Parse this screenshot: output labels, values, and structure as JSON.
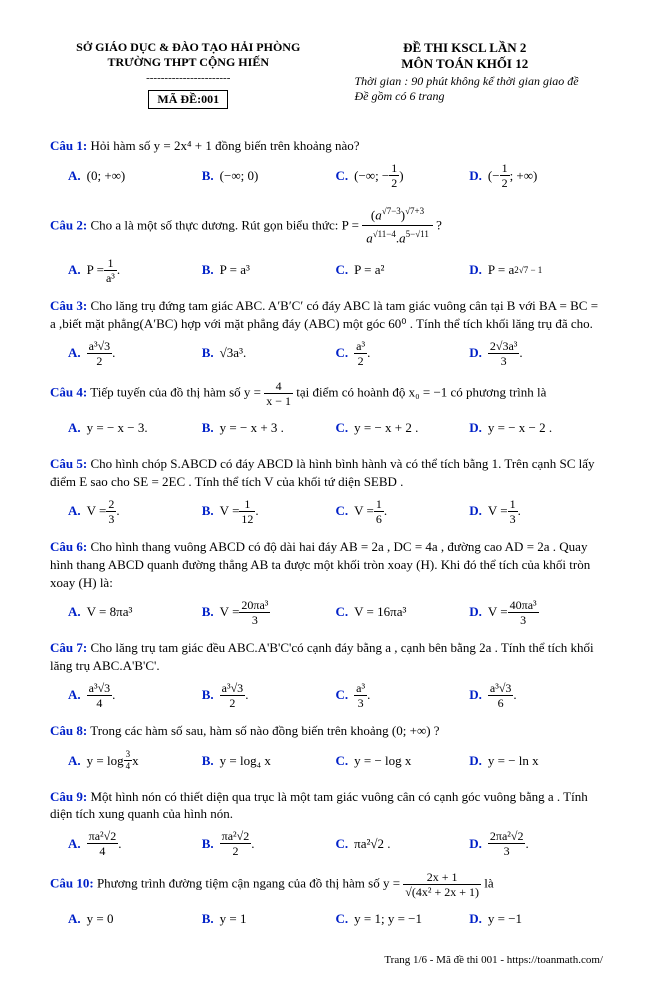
{
  "header": {
    "dept": "SỞ GIÁO DỤC & ĐÀO TẠO HẢI PHÒNG",
    "school": "TRƯỜNG THPT CỘNG HIẾN",
    "code_label": "MÃ ĐỀ:001",
    "title": "ĐỀ THI KSCL LẦN 2",
    "subject": "MÔN TOÁN KHỐI 12",
    "time": "Thời gian : 90 phút không kể thời gian giao đề",
    "pages": "Đề gồm có 6 trang"
  },
  "q1": {
    "label": "Câu 1:",
    "text": "Hỏi hàm số  y = 2x⁴ + 1 đồng biến trên khoảng nào?",
    "a": "(0; +∞)",
    "b": "(−∞; 0)",
    "c_pre": "(−∞; −",
    "c_num": "1",
    "c_den": "2",
    "c_post": ")",
    "d_pre": "(−",
    "d_num": "1",
    "d_den": "2",
    "d_post": "; +∞)"
  },
  "q2": {
    "label": "Câu 2:",
    "text_pre": "Cho  a là một số thực dương. Rút gọn biểu thức:  P = ",
    "top_base_exp": "√7−3",
    "top_outer_exp": "√7+3",
    "bot_left_exp": "√11−4",
    "bot_right_exp": "5−√11",
    "q_mark": " ?",
    "a_pre": "P = ",
    "a_num": "1",
    "a_den": "a³",
    "b": "P = a³",
    "c": "P = a²",
    "d_pre": "P = a",
    "d_exp": "2√7 − 1"
  },
  "q3": {
    "label": "Câu 3:",
    "text": "Cho lăng trụ đứng tam giác ABC. A′B′C′ có đáy ABC là tam giác vuông cân tại B với BA = BC = a ,biết mặt phẳng(A′BC) hợp với mặt phẳng đáy (ABC) một góc 60⁰ . Tính thể tích khối lăng trụ đã cho.",
    "a_num": "a³√3",
    "a_den": "2",
    "b": "√3a³.",
    "c_num": "a³",
    "c_den": "2",
    "d_num": "2√3a³",
    "d_den": "3"
  },
  "q4": {
    "label": "Câu 4:",
    "text_pre": "Tiếp tuyến của đồ thị hàm số  y = ",
    "num": "4",
    "den": "x − 1",
    "text_post": " tại điểm có hoành độ  x₀ = −1 có phương trình là",
    "a": "y = − x − 3.",
    "b": "y = − x + 3 .",
    "c": "y = − x + 2 .",
    "d": "y = − x − 2 ."
  },
  "q5": {
    "label": "Câu 5:",
    "text": "Cho hình chóp S.ABCD có đáy ABCD là hình bình hành và có thể tích bằng 1. Trên cạnh SC lấy điểm E sao cho SE = 2EC . Tính thể tích V của khối tứ diện SEBD .",
    "a_pre": "V = ",
    "a_num": "2",
    "a_den": "3",
    "b_pre": "V = ",
    "b_num": "1",
    "b_den": "12",
    "c_pre": "V = ",
    "c_num": "1",
    "c_den": "6",
    "d_pre": "V = ",
    "d_num": "1",
    "d_den": "3"
  },
  "q6": {
    "label": "Câu 6:",
    "text": "Cho hình thang vuông ABCD có độ dài hai đáy  AB = 2a ,  DC = 4a , đường cao  AD = 2a . Quay hình thang ABCD quanh đường thẳng AB ta được một khối tròn xoay (H). Khi đó thể tích của khối tròn xoay (H) là:",
    "a": "V = 8πa³",
    "b_pre": "V = ",
    "b_num": "20πa³",
    "b_den": "3",
    "c": "V = 16πa³",
    "d_pre": "V = ",
    "d_num": "40πa³",
    "d_den": "3"
  },
  "q7": {
    "label": "Câu 7:",
    "text": "Cho lăng trụ tam giác đều ABC.A'B'C'có cạnh đáy bằng  a , cạnh bên bằng 2a . Tính thể tích khối lăng trụ ABC.A'B'C'.",
    "a_num": "a³√3",
    "a_den": "4",
    "b_num": "a³√3",
    "b_den": "2",
    "c_num": "a³",
    "c_den": "3",
    "d_num": "a³√3",
    "d_den": "6"
  },
  "q8": {
    "label": "Câu 8:",
    "text": "Trong các hàm số sau, hàm số nào đồng biến trên khoảng  (0; +∞) ?",
    "a_pre": "y = log",
    "a_sub_num": "3",
    "a_sub_den": "4",
    "a_post": " x",
    "b": "y = log₄ x",
    "c": "y = − log x",
    "d": "y = − ln x"
  },
  "q9": {
    "label": "Câu 9:",
    "text": "Một hình nón có thiết diện qua trục là một tam giác vuông cân có cạnh góc vuông bằng  a . Tính diện tích xung quanh của hình nón.",
    "a_num": "πa²√2",
    "a_den": "4",
    "b_num": "πa²√2",
    "b_den": "2",
    "c": "πa²√2 .",
    "d_num": "2πa²√2",
    "d_den": "3"
  },
  "q10": {
    "label": "Câu 10:",
    "text_pre": "Phương trình đường tiệm cận ngang của đồ thị hàm số  y = ",
    "num": "2x + 1",
    "den": "√(4x² + 2x + 1)",
    "text_post": " là",
    "a": "y = 0",
    "b": "y = 1",
    "c": "y = 1; y = −1",
    "d": "y = −1"
  },
  "footer": "Trang 1/6 - Mã đề thi 001 - https://toanmath.com/"
}
